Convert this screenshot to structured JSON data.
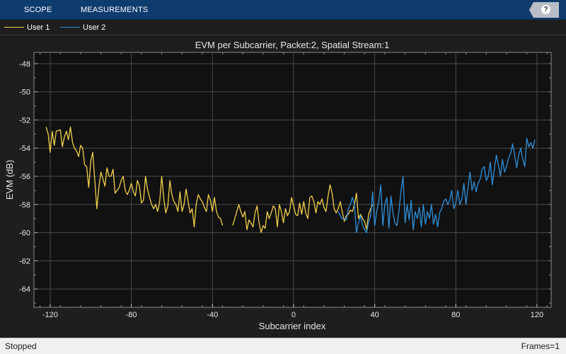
{
  "toolstrip": {
    "tabs": [
      {
        "label": "SCOPE"
      },
      {
        "label": "MEASUREMENTS"
      }
    ],
    "help_glyph": "?",
    "help_icon": "question-circle-icon",
    "background": "#0f3c6e"
  },
  "legend": {
    "items": [
      {
        "label": "User 1",
        "color": "#f2d04c"
      },
      {
        "label": "User 2",
        "color": "#2f8fd8"
      }
    ]
  },
  "status": {
    "left": "Stopped",
    "right": "Frames=1"
  },
  "chart_data": {
    "type": "line",
    "title": "EVM per Subcarrier, Packet:2, Spatial Stream:1",
    "xlabel": "Subcarrier index",
    "ylabel": "EVM (dB)",
    "xlim": [
      -128,
      127
    ],
    "ylim": [
      -65.3,
      -47.2
    ],
    "xticks": [
      -120,
      -80,
      -40,
      0,
      40,
      80,
      120
    ],
    "xtick_labels": [
      "-120",
      "-80",
      "-40",
      "0",
      "40",
      "80",
      "120"
    ],
    "yticks": [
      -48,
      -50,
      -52,
      -54,
      -56,
      -58,
      -60,
      -62,
      -64
    ],
    "ytick_labels": [
      "-48",
      "-50",
      "-52",
      "-54",
      "-56",
      "-58",
      "-60",
      "-62",
      "-64"
    ],
    "grid": true,
    "legend_position": "top-left",
    "background": "#111111",
    "series": [
      {
        "name": "User 1",
        "color": "#f2d04c",
        "segments": [
          [
            [
              -122,
              -52.5
            ],
            [
              -121,
              -53.0
            ],
            [
              -120,
              -54.3
            ],
            [
              -119,
              -52.8
            ],
            [
              -118,
              -53.8
            ],
            [
              -117,
              -52.8
            ],
            [
              -115,
              -52.7
            ],
            [
              -114,
              -53.9
            ],
            [
              -113,
              -53.2
            ],
            [
              -112,
              -52.8
            ],
            [
              -111,
              -53.4
            ],
            [
              -110,
              -52.5
            ],
            [
              -109,
              -53.6
            ],
            [
              -108,
              -54.0
            ],
            [
              -107,
              -54.2
            ],
            [
              -106,
              -54.6
            ],
            [
              -105,
              -53.8
            ],
            [
              -104,
              -54.0
            ],
            [
              -103,
              -55.2
            ],
            [
              -102,
              -55.3
            ],
            [
              -101,
              -56.8
            ],
            [
              -100,
              -54.9
            ],
            [
              -99,
              -54.3
            ],
            [
              -98,
              -56.3
            ],
            [
              -97,
              -58.3
            ],
            [
              -96,
              -56.8
            ],
            [
              -95,
              -55.7
            ],
            [
              -94,
              -56.2
            ],
            [
              -93,
              -56.7
            ],
            [
              -92,
              -55.4
            ],
            [
              -91,
              -56.0
            ],
            [
              -90,
              -56.0
            ],
            [
              -89,
              -55.5
            ],
            [
              -88,
              -57.2
            ],
            [
              -87,
              -57.0
            ],
            [
              -86,
              -56.8
            ],
            [
              -85,
              -56.3
            ],
            [
              -84,
              -56.0
            ],
            [
              -83,
              -57.0
            ],
            [
              -82,
              -57.3
            ],
            [
              -81,
              -57.0
            ],
            [
              -80,
              -56.5
            ],
            [
              -79,
              -57.1
            ],
            [
              -78,
              -57.4
            ],
            [
              -77,
              -56.3
            ],
            [
              -76,
              -56.7
            ],
            [
              -75,
              -57.9
            ],
            [
              -74,
              -57.7
            ],
            [
              -73,
              -56.0
            ],
            [
              -72,
              -56.9
            ],
            [
              -71,
              -57.5
            ],
            [
              -70,
              -58.0
            ],
            [
              -69,
              -58.3
            ],
            [
              -68,
              -58.0
            ],
            [
              -67,
              -58.5
            ],
            [
              -66,
              -57.8
            ],
            [
              -65,
              -56.0
            ],
            [
              -64,
              -57.6
            ],
            [
              -63,
              -58.6
            ],
            [
              -62,
              -58.1
            ],
            [
              -61,
              -56.3
            ],
            [
              -60,
              -57.3
            ],
            [
              -59,
              -57.8
            ],
            [
              -58,
              -58.0
            ],
            [
              -57,
              -58.5
            ],
            [
              -56,
              -57.1
            ],
            [
              -55,
              -58.5
            ],
            [
              -54,
              -58.0
            ],
            [
              -53,
              -56.9
            ],
            [
              -52,
              -57.8
            ],
            [
              -51,
              -58.6
            ],
            [
              -50,
              -58.3
            ],
            [
              -49,
              -59.6
            ],
            [
              -48,
              -58.0
            ],
            [
              -47,
              -57.3
            ],
            [
              -46,
              -57.6
            ],
            [
              -45,
              -57.8
            ],
            [
              -44,
              -58.2
            ],
            [
              -43,
              -58.5
            ],
            [
              -42,
              -57.3
            ],
            [
              -41,
              -57.7
            ],
            [
              -40,
              -58.5
            ],
            [
              -39,
              -57.5
            ],
            [
              -38,
              -58.5
            ],
            [
              -37,
              -58.9
            ],
            [
              -36,
              -59.0
            ],
            [
              -35,
              -59.5
            ]
          ],
          [
            [
              -30,
              -59.5
            ],
            [
              -29,
              -59.0
            ],
            [
              -28,
              -58.5
            ],
            [
              -27,
              -58.0
            ],
            [
              -26,
              -58.5
            ],
            [
              -25,
              -58.9
            ],
            [
              -24,
              -58.5
            ],
            [
              -23,
              -59.8
            ],
            [
              -22,
              -59.1
            ],
            [
              -21,
              -59.3
            ],
            [
              -20,
              -59.6
            ],
            [
              -19,
              -58.6
            ],
            [
              -18,
              -58.1
            ],
            [
              -17,
              -59.3
            ],
            [
              -16,
              -60.0
            ],
            [
              -15,
              -59.5
            ],
            [
              -14,
              -59.7
            ],
            [
              -13,
              -58.5
            ],
            [
              -12,
              -59.0
            ],
            [
              -11,
              -58.6
            ],
            [
              -10,
              -58.1
            ],
            [
              -9,
              -58.3
            ],
            [
              -8,
              -59.6
            ],
            [
              -7,
              -58.0
            ],
            [
              -6,
              -58.5
            ],
            [
              -5,
              -59.3
            ],
            [
              -4,
              -58.3
            ],
            [
              -3,
              -58.8
            ],
            [
              -2,
              -58.5
            ],
            [
              -1,
              -57.5
            ],
            [
              1,
              -58.7
            ],
            [
              2,
              -58.8
            ],
            [
              3,
              -57.9
            ],
            [
              4,
              -58.7
            ],
            [
              5,
              -57.8
            ],
            [
              6,
              -58.6
            ],
            [
              7,
              -59.0
            ],
            [
              8,
              -57.5
            ],
            [
              9,
              -57.4
            ],
            [
              10,
              -57.8
            ],
            [
              11,
              -58.6
            ],
            [
              12,
              -57.8
            ],
            [
              13,
              -58.0
            ],
            [
              14,
              -57.6
            ],
            [
              15,
              -58.2
            ],
            [
              16,
              -58.5
            ],
            [
              17,
              -57.4
            ],
            [
              18,
              -56.6
            ],
            [
              19,
              -57.2
            ],
            [
              20,
              -58.3
            ],
            [
              21,
              -58.6
            ],
            [
              22,
              -58.3
            ],
            [
              23,
              -57.8
            ],
            [
              24,
              -58.5
            ],
            [
              25,
              -59.2
            ],
            [
              26,
              -58.8
            ],
            [
              27,
              -58.7
            ],
            [
              28,
              -58.4
            ],
            [
              29,
              -58.5
            ],
            [
              30,
              -58.0
            ],
            [
              31,
              -57.2
            ],
            [
              32,
              -59.0
            ],
            [
              33,
              -58.7
            ],
            [
              34,
              -59.0
            ],
            [
              35,
              -59.2
            ],
            [
              36,
              -59.8
            ],
            [
              37,
              -58.7
            ],
            [
              38,
              -58.3
            ],
            [
              39,
              -58.0
            ]
          ]
        ]
      },
      {
        "name": "User 2",
        "color": "#2f8fd8",
        "segments": [
          [
            [
              22,
              -58.5
            ],
            [
              23,
              -58.8
            ],
            [
              24,
              -59.0
            ],
            [
              25,
              -59.0
            ],
            [
              26,
              -59.1
            ],
            [
              27,
              -58.3
            ],
            [
              28,
              -58.0
            ],
            [
              29,
              -57.5
            ],
            [
              30,
              -58.0
            ],
            [
              31,
              -60.0
            ],
            [
              32,
              -59.3
            ],
            [
              33,
              -58.8
            ],
            [
              34,
              -59.5
            ],
            [
              35,
              -59.8
            ],
            [
              36,
              -60.0
            ],
            [
              37,
              -59.2
            ],
            [
              38,
              -58.8
            ],
            [
              39,
              -57.1
            ],
            [
              40,
              -59.5
            ],
            [
              41,
              -58.5
            ],
            [
              42,
              -57.8
            ],
            [
              43,
              -56.6
            ],
            [
              44,
              -59.5
            ],
            [
              45,
              -58.0
            ],
            [
              46,
              -57.5
            ],
            [
              47,
              -59.7
            ],
            [
              48,
              -57.4
            ],
            [
              49,
              -58.6
            ],
            [
              50,
              -59.3
            ],
            [
              51,
              -59.5
            ],
            [
              52,
              -58.4
            ],
            [
              53,
              -57.0
            ],
            [
              54,
              -56.0
            ],
            [
              55,
              -59.3
            ],
            [
              56,
              -58.0
            ],
            [
              57,
              -59.1
            ],
            [
              58,
              -57.7
            ],
            [
              59,
              -59.8
            ],
            [
              60,
              -58.5
            ],
            [
              61,
              -59.0
            ],
            [
              62,
              -58.2
            ],
            [
              63,
              -59.6
            ],
            [
              64,
              -58.0
            ],
            [
              65,
              -59.4
            ],
            [
              66,
              -58.5
            ],
            [
              67,
              -59.0
            ],
            [
              68,
              -58.0
            ],
            [
              69,
              -59.4
            ],
            [
              70,
              -58.7
            ],
            [
              71,
              -59.6
            ],
            [
              72,
              -58.6
            ],
            [
              73,
              -58.3
            ],
            [
              74,
              -57.8
            ],
            [
              75,
              -57.6
            ],
            [
              76,
              -58.0
            ],
            [
              77,
              -57.7
            ],
            [
              78,
              -57.0
            ],
            [
              79,
              -58.3
            ],
            [
              80,
              -57.9
            ],
            [
              81,
              -57.0
            ],
            [
              82,
              -58.0
            ],
            [
              83,
              -57.6
            ],
            [
              84,
              -56.5
            ],
            [
              85,
              -58.0
            ],
            [
              86,
              -56.8
            ],
            [
              87,
              -55.7
            ],
            [
              88,
              -57.0
            ],
            [
              89,
              -56.4
            ],
            [
              90,
              -57.1
            ],
            [
              91,
              -56.5
            ],
            [
              92,
              -56.2
            ],
            [
              93,
              -55.5
            ],
            [
              94,
              -55.3
            ],
            [
              95,
              -56.3
            ],
            [
              96,
              -56.0
            ],
            [
              97,
              -55.0
            ],
            [
              98,
              -56.6
            ],
            [
              99,
              -55.5
            ],
            [
              100,
              -54.5
            ],
            [
              101,
              -55.2
            ],
            [
              102,
              -56.0
            ],
            [
              103,
              -54.8
            ],
            [
              104,
              -55.7
            ],
            [
              105,
              -55.3
            ],
            [
              106,
              -54.7
            ],
            [
              107,
              -54.4
            ],
            [
              108,
              -53.7
            ],
            [
              109,
              -54.5
            ],
            [
              110,
              -55.4
            ],
            [
              111,
              -54.5
            ],
            [
              112,
              -54.0
            ],
            [
              113,
              -54.8
            ],
            [
              114,
              -55.3
            ],
            [
              115,
              -53.3
            ],
            [
              116,
              -53.9
            ],
            [
              117,
              -53.6
            ],
            [
              118,
              -54.0
            ],
            [
              119,
              -53.4
            ]
          ]
        ]
      }
    ]
  }
}
